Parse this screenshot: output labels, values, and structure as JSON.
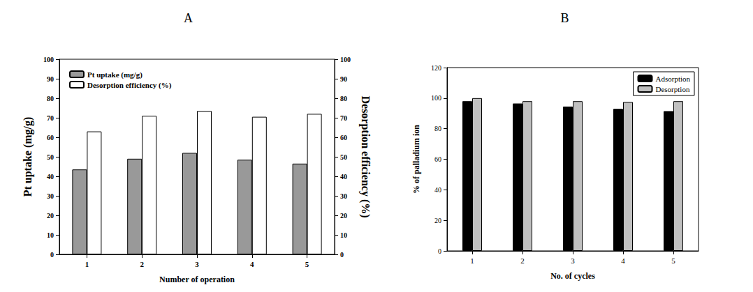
{
  "chart_data": [
    {
      "type": "bar",
      "title": "A",
      "categories": [
        "1",
        "2",
        "3",
        "4",
        "5"
      ],
      "x_label": "Number of operation",
      "y_label": "Pt uptake (mg/g)",
      "y2_label": "Desorption efficiency (%)",
      "ylim": [
        0,
        100
      ],
      "yticks": [
        0,
        10,
        20,
        30,
        40,
        50,
        60,
        70,
        80,
        90,
        100
      ],
      "y2lim": [
        0,
        100
      ],
      "y2ticks": [
        0,
        10,
        20,
        30,
        40,
        50,
        60,
        70,
        80,
        90,
        100
      ],
      "legend": "upper left",
      "grid": false,
      "series": [
        {
          "name": "Pt uptake (mg/g)",
          "color": "#999999",
          "values": [
            43.5,
            49,
            52,
            48.5,
            46.5
          ]
        },
        {
          "name": "Desorption efficiency (%)",
          "color": "#ffffff",
          "axis": "y2",
          "values": [
            63,
            71,
            73.5,
            70.5,
            72
          ]
        }
      ]
    },
    {
      "type": "bar",
      "title": "B",
      "categories": [
        "1",
        "2",
        "3",
        "4",
        "5"
      ],
      "x_label": "No. of cycles",
      "y_label": "% of palladium ion",
      "ylim": [
        0,
        120
      ],
      "yticks": [
        0,
        20,
        40,
        60,
        80,
        100,
        120
      ],
      "legend": "upper right",
      "grid": false,
      "series": [
        {
          "name": "Adsorption",
          "color": "#000000",
          "values": [
            98,
            96.5,
            94.5,
            93,
            91.5
          ]
        },
        {
          "name": "Desorption",
          "color": "#c0c0c0",
          "values": [
            100,
            98,
            98,
            97.5,
            98
          ]
        }
      ]
    }
  ]
}
